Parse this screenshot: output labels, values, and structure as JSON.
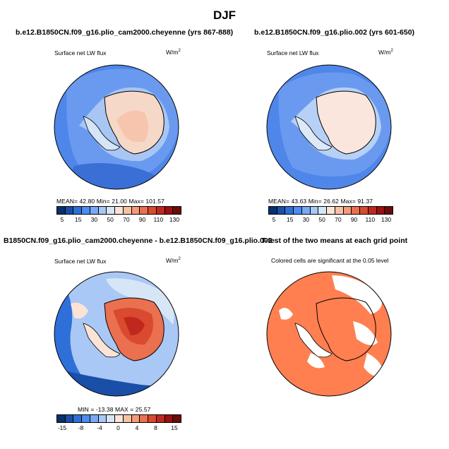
{
  "figure": {
    "title": "DJF"
  },
  "panels": [
    {
      "title": "b.e12.B1850CN.f09_g16.plio_cam2000.cheyenne (yrs 867-888)",
      "variable": "Surface net LW flux",
      "units": "W/m",
      "units_sup": "2",
      "stats": "MEAN=   42.80   Min=   21.00   Max=  101.57",
      "colorbar": {
        "labels": [
          "5",
          "15",
          "30",
          "50",
          "70",
          "90",
          "110",
          "130"
        ],
        "colors": [
          "#08306b",
          "#1a4fa8",
          "#2f6fd8",
          "#4d8cf0",
          "#79a8f5",
          "#a9c8f5",
          "#d7e6f7",
          "#fbe3d6",
          "#f8c1a6",
          "#f49b78",
          "#ea7050",
          "#d94a30",
          "#c0281d",
          "#9b1010",
          "#6e0a0a"
        ]
      }
    },
    {
      "title": "b.e12.B1850CN.f09_g16.plio.002 (yrs 601-650)",
      "variable": "Surface net LW flux",
      "units": "W/m",
      "units_sup": "2",
      "stats": "MEAN=   43.63   Min=   26.62   Max=   91.37",
      "colorbar": {
        "labels": [
          "5",
          "15",
          "30",
          "50",
          "70",
          "90",
          "110",
          "130"
        ],
        "colors": [
          "#08306b",
          "#1a4fa8",
          "#2f6fd8",
          "#4d8cf0",
          "#79a8f5",
          "#a9c8f5",
          "#d7e6f7",
          "#fbe3d6",
          "#f8c1a6",
          "#f49b78",
          "#ea7050",
          "#d94a30",
          "#c0281d",
          "#9b1010",
          "#6e0a0a"
        ]
      }
    },
    {
      "title": "B1850CN.f09_g16.plio_cam2000.cheyenne - b.e12.B1850CN.f09_g16.plio.002",
      "variable": "Surface net LW flux",
      "units": "W/m",
      "units_sup": "2",
      "stats": "MIN = -13.38  MAX =  25.57",
      "colorbar": {
        "labels": [
          "-15",
          "-8",
          "-4",
          "0",
          "4",
          "8",
          "15"
        ],
        "colors": [
          "#08306b",
          "#1a4fa8",
          "#2f6fd8",
          "#4d8cf0",
          "#79a8f5",
          "#a9c8f5",
          "#d7e6f7",
          "#fbe3d6",
          "#f8c1a6",
          "#f49b78",
          "#ea7050",
          "#d94a30",
          "#c0281d",
          "#9b1010",
          "#6e0a0a"
        ]
      }
    },
    {
      "title": "T-test of the two means at each grid point",
      "subtitle": "Colored cells are significant at the 0.05 level"
    }
  ]
}
